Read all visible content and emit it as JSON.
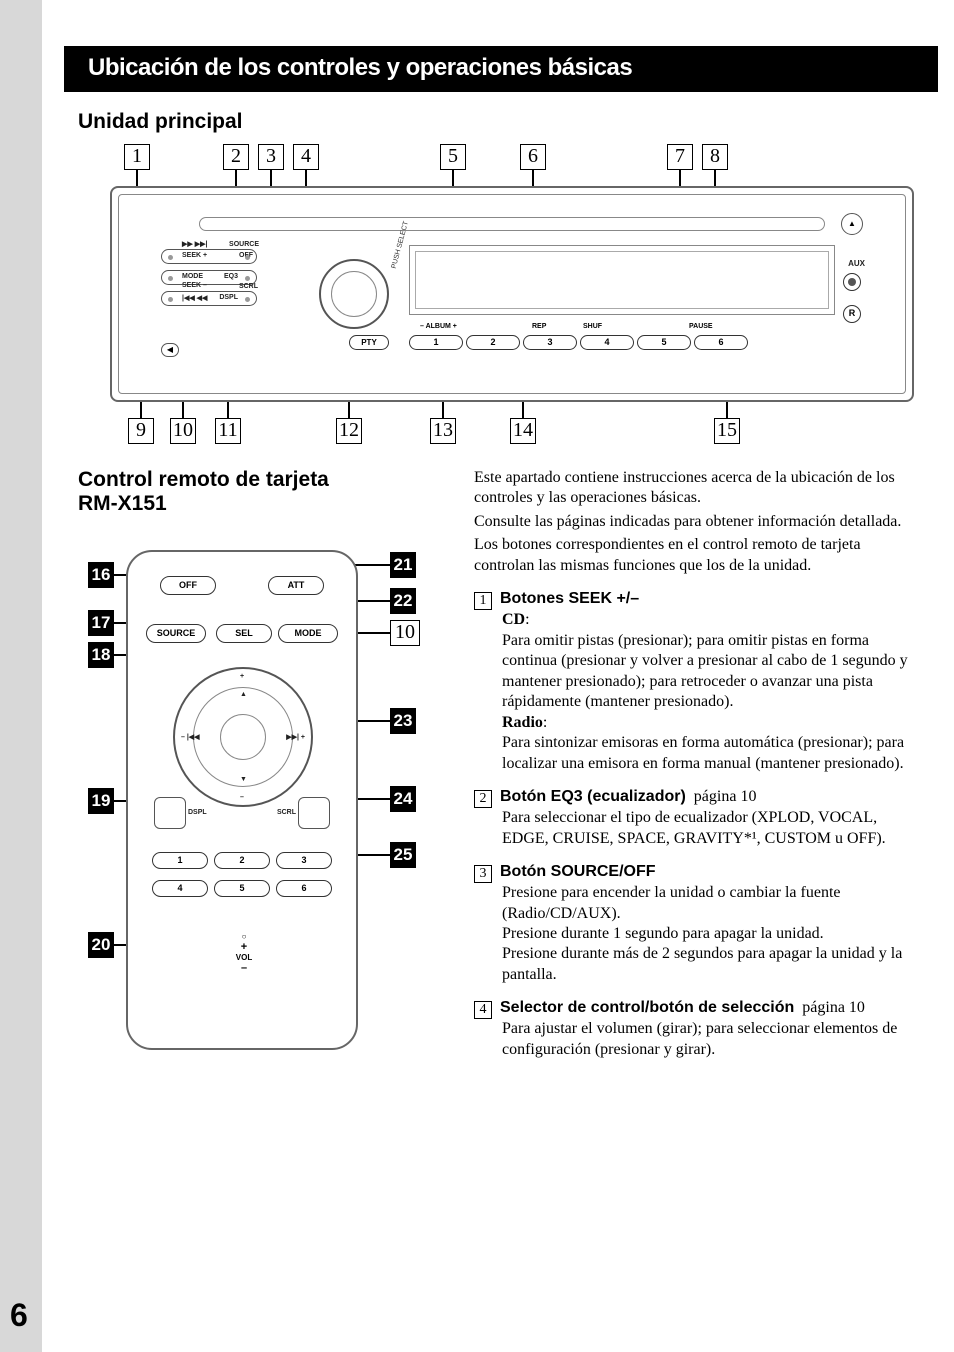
{
  "page_number": "6",
  "title_bar": "Ubicación de los controles y operaciones básicas",
  "section1": "Unidad principal",
  "section2_l1": "Control remoto de tarjeta",
  "section2_l2": "RM-X151",
  "main_unit": {
    "callouts_top": [
      "1",
      "2",
      "3",
      "4",
      "5",
      "6",
      "7",
      "8"
    ],
    "callouts_bottom": [
      "9",
      "10",
      "11",
      "12",
      "13",
      "14",
      "15"
    ],
    "callout_top_x": [
      14,
      113,
      148,
      183,
      330,
      410,
      557,
      592
    ],
    "callout_bottom_x": [
      18,
      60,
      105,
      226,
      320,
      400,
      604
    ],
    "labels": {
      "seek_plus": "SEEK +",
      "seek_fwd_icons": "▶▶ ▶▶|",
      "source": "SOURCE",
      "off": "OFF",
      "mode": "MODE",
      "eq3": "EQ3",
      "seek_minus": "SEEK –",
      "seek_rev_icons": "|◀◀ ◀◀",
      "dspl": "DSPL",
      "scrl": "SCRL",
      "push_select": "PUSH SELECT",
      "pty": "PTY",
      "album_m": "–  ALBUM  +",
      "rep": "REP",
      "shuf": "SHUF",
      "pause": "PAUSE",
      "aux": "AUX",
      "ir": "R",
      "eject": "▲",
      "release": "◀",
      "nums": [
        "1",
        "2",
        "3",
        "4",
        "5",
        "6"
      ]
    }
  },
  "remote": {
    "callouts_left": [
      "16",
      "17",
      "18",
      "19",
      "20"
    ],
    "callouts_right_solid": [
      "21",
      "22",
      "23",
      "24",
      "25"
    ],
    "callouts_right_boxed": "10",
    "buttons": {
      "off": "OFF",
      "att": "ATT",
      "source": "SOURCE",
      "sel": "SEL",
      "mode": "MODE",
      "dspl": "DSPL",
      "scrl": "SCRL",
      "vol": "VOL",
      "nums": [
        "1",
        "2",
        "3",
        "4",
        "5",
        "6"
      ]
    }
  },
  "intro": {
    "p1": "Este apartado contiene instrucciones acerca de la ubicación de los controles y las operaciones básicas.",
    "p2": "Consulte las páginas indicadas para obtener información detallada.",
    "p3": "Los botones correspondientes en el control remoto de tarjeta controlan las mismas funciones que los de la unidad."
  },
  "items": [
    {
      "num": "1",
      "title": "Botones SEEK +/–",
      "page_ref": "",
      "body_html": "<b>CD</b>:<br>Para omitir pistas (presionar); para omitir pistas en forma continua (presionar y volver a presionar al cabo de 1 segundo y mantener presionado); para retroceder o avanzar una pista rápidamente (mantener presionado).<br><b>Radio</b>:<br>Para sintonizar emisoras en forma automática (presionar); para localizar una emisora en forma manual (mantener presionado)."
    },
    {
      "num": "2",
      "title": "Botón EQ3 (ecualizador)",
      "page_ref": "página 10",
      "body_html": "Para seleccionar el tipo de ecualizador (XPLOD, VOCAL, EDGE, CRUISE, SPACE, GRAVITY*¹, CUSTOM u OFF)."
    },
    {
      "num": "3",
      "title": "Botón SOURCE/OFF",
      "page_ref": "",
      "body_html": "Presione para encender la unidad o cambiar la fuente (Radio/CD/AUX).<br>Presione durante 1 segundo para apagar la unidad.<br>Presione durante más de 2 segundos para apagar la unidad y la pantalla."
    },
    {
      "num": "4",
      "title": "Selector de control/botón de selección",
      "page_ref": "página 10",
      "body_html": "Para ajustar el volumen (girar); para seleccionar elementos de configuración (presionar y girar)."
    }
  ]
}
